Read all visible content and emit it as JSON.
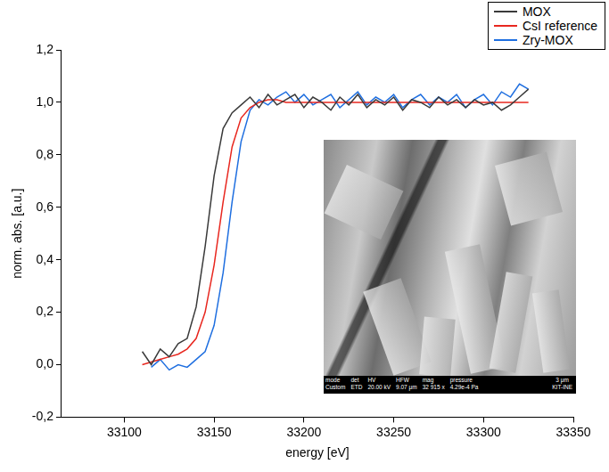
{
  "chart_data": {
    "type": "line",
    "x_label": "energy [eV]",
    "y_label": "norm. abs. [a.u.]",
    "xlim": [
      33065,
      33350
    ],
    "xticks": [
      33100,
      33150,
      33200,
      33250,
      33300,
      33350
    ],
    "ylim": [
      -0.2,
      1.2
    ],
    "yticks": [
      {
        "value": -0.2,
        "label": "-0,2"
      },
      {
        "value": 0,
        "label": "0,0"
      },
      {
        "value": 0.2,
        "label": "0,2"
      },
      {
        "value": 0.4,
        "label": "0,4"
      },
      {
        "value": 0.6,
        "label": "0,6"
      },
      {
        "value": 0.8,
        "label": "0,8"
      },
      {
        "value": 1.0,
        "label": "1,0"
      },
      {
        "value": 1.2,
        "label": "1,2"
      }
    ],
    "grid": false,
    "legend": "top right",
    "x": [
      33110,
      33115,
      33120,
      33125,
      33130,
      33135,
      33140,
      33145,
      33150,
      33155,
      33160,
      33165,
      33170,
      33175,
      33180,
      33185,
      33190,
      33195,
      33200,
      33205,
      33210,
      33215,
      33220,
      33225,
      33230,
      33235,
      33240,
      33245,
      33250,
      33255,
      33260,
      33265,
      33270,
      33275,
      33280,
      33285,
      33290,
      33295,
      33300,
      33305,
      33310,
      33315,
      33320,
      33325
    ],
    "series": [
      {
        "name": "MOX",
        "color": "#3a3a3a",
        "values": [
          0.05,
          0.0,
          0.06,
          0.03,
          0.08,
          0.1,
          0.22,
          0.45,
          0.72,
          0.9,
          0.96,
          0.99,
          1.02,
          0.98,
          1.03,
          0.99,
          1.01,
          1.03,
          0.98,
          1.02,
          1.0,
          0.97,
          1.02,
          0.99,
          1.03,
          0.98,
          1.01,
          0.99,
          1.02,
          0.97,
          1.01,
          1.0,
          0.98,
          1.02,
          0.99,
          1.01,
          0.98,
          1.01,
          0.99,
          1.0,
          0.97,
          0.99,
          1.02,
          1.05
        ]
      },
      {
        "name": "CsI reference",
        "color": "#e8271f",
        "values": [
          0.0,
          0.01,
          0.02,
          0.03,
          0.04,
          0.06,
          0.1,
          0.2,
          0.38,
          0.62,
          0.83,
          0.94,
          0.98,
          1.0,
          1.01,
          1.01,
          1.0,
          1.0,
          1.0,
          1.0,
          1.0,
          1.0,
          1.0,
          1.0,
          1.0,
          1.0,
          1.0,
          1.0,
          1.0,
          1.0,
          1.0,
          1.0,
          1.0,
          1.0,
          1.0,
          1.0,
          1.0,
          1.0,
          1.0,
          1.0,
          1.0,
          1.0,
          1.0,
          1.0
        ]
      },
      {
        "name": "Zry-MOX",
        "color": "#1f6fe0",
        "values": [
          null,
          -0.01,
          0.02,
          -0.02,
          0.0,
          -0.01,
          0.02,
          0.05,
          0.15,
          0.35,
          0.62,
          0.85,
          0.97,
          1.01,
          0.99,
          1.02,
          1.04,
          1.0,
          1.03,
          0.99,
          1.01,
          1.03,
          0.98,
          1.01,
          1.04,
          0.99,
          1.02,
          1.0,
          1.03,
          0.98,
          1.01,
          1.03,
          0.99,
          1.02,
          1.0,
          1.03,
          0.98,
          1.01,
          1.03,
          0.99,
          1.04,
          1.02,
          1.07,
          1.05
        ]
      }
    ],
    "inset": {
      "info_header": [
        "mode",
        "det",
        "HV",
        "HFW",
        "mag",
        "pressure",
        "3 μm"
      ],
      "info_values": [
        "Custom",
        "ETD",
        "20.00 kV",
        "9.07 μm",
        "32 915 x",
        "4.29e-4 Pa",
        "KIT-INE"
      ]
    }
  }
}
